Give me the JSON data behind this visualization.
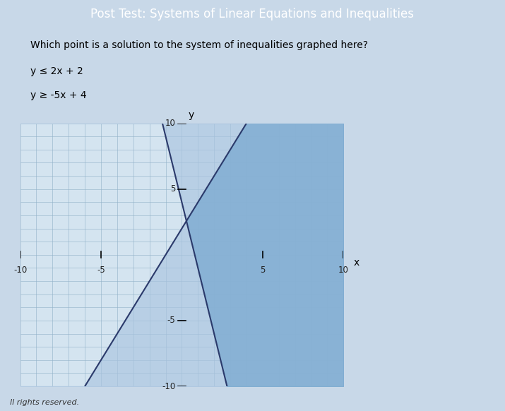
{
  "title": "Post Test: Systems of Linear Equations and Inequalities",
  "question": "Which point is a solution to the system of inequalities graphed here?",
  "line1_label": "y ≤ 2x + 2",
  "line2_label": "y ≥ -5x + 4",
  "line1_slope": 2,
  "line1_intercept": 2,
  "line2_slope": -5,
  "line2_intercept": 4,
  "xlim": [
    -10,
    10
  ],
  "ylim": [
    -10,
    10
  ],
  "xticks": [
    -10,
    -5,
    5,
    10
  ],
  "yticks": [
    -10,
    -5,
    5,
    10
  ],
  "xtick_labels": [
    "-10",
    "-5",
    "5",
    "10"
  ],
  "ytick_labels": [
    "-10",
    "-5",
    "5",
    "10"
  ],
  "shade1_color": "#aac4e0",
  "shade2_color": "#aac4e0",
  "overlap_color": "#7aaad0",
  "line_color": "#2b3a6b",
  "plot_bg": "#d4e4f0",
  "grid_minor_color": "#90b0c8",
  "axis_label_x": "x",
  "axis_label_y": "y",
  "tick_label_color": "#222222",
  "outer_bg": "#c8d8e8",
  "header_bg": "#4466cc",
  "footer_text": "ll rights reserved."
}
